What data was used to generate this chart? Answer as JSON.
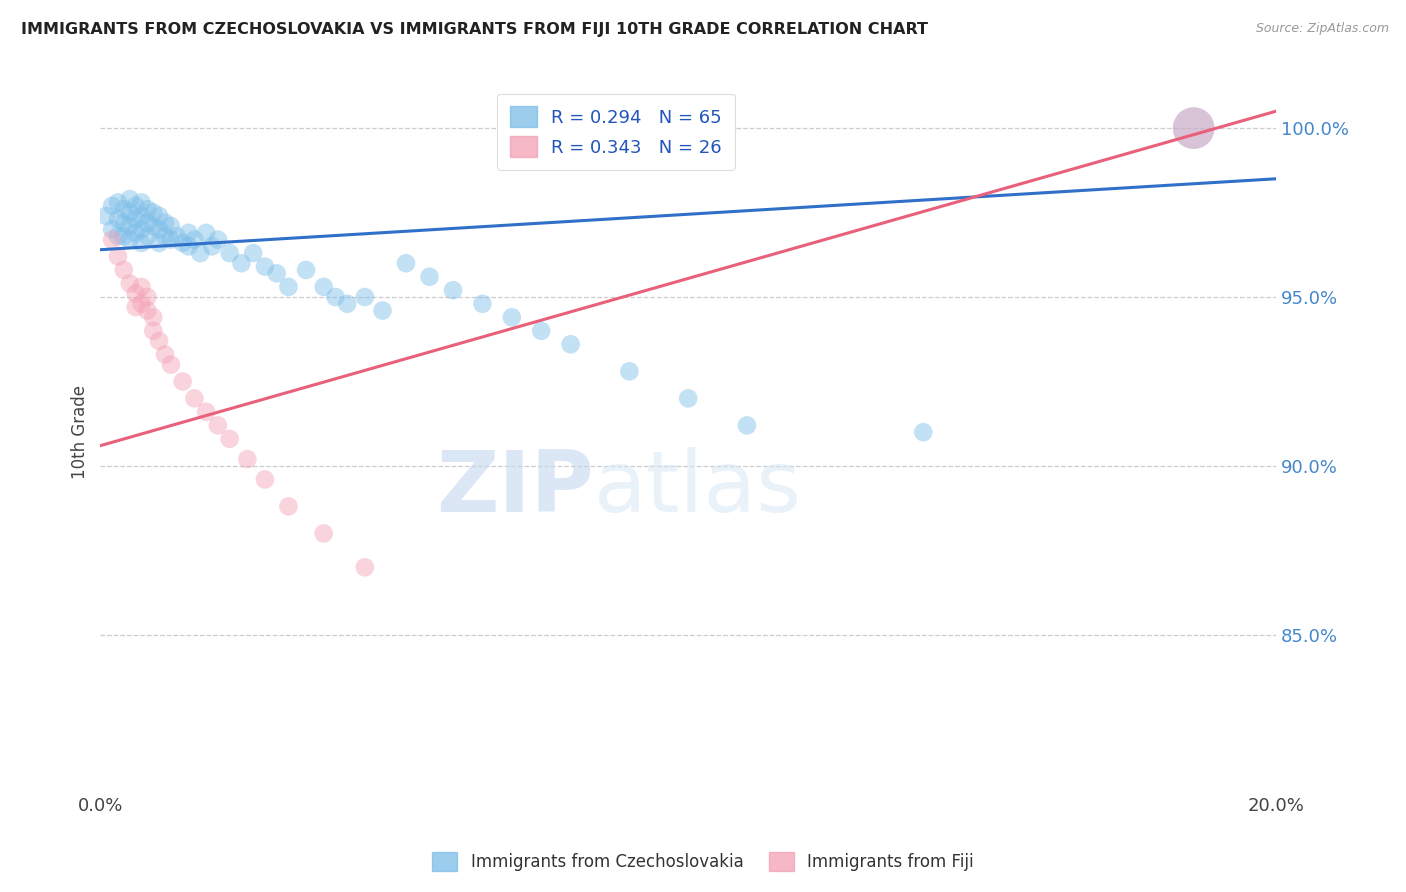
{
  "title": "IMMIGRANTS FROM CZECHOSLOVAKIA VS IMMIGRANTS FROM FIJI 10TH GRADE CORRELATION CHART",
  "source": "Source: ZipAtlas.com",
  "ylabel": "10th Grade",
  "yticks": [
    0.85,
    0.9,
    0.95,
    1.0
  ],
  "ytick_labels": [
    "85.0%",
    "90.0%",
    "95.0%",
    "100.0%"
  ],
  "xmin": 0.0,
  "xmax": 0.2,
  "ymin": 0.805,
  "ymax": 1.015,
  "legend_blue_r": "R = 0.294",
  "legend_blue_n": "N = 65",
  "legend_pink_r": "R = 0.343",
  "legend_pink_n": "N = 26",
  "blue_color": "#7bbde8",
  "pink_color": "#f4a0b5",
  "blue_line_color": "#3070c8",
  "pink_line_color": "#e8607a",
  "watermark_zip": "ZIP",
  "watermark_atlas": "atlas",
  "blue_line_x": [
    0.0,
    0.2
  ],
  "blue_line_y": [
    0.964,
    0.985
  ],
  "pink_line_x": [
    0.0,
    0.2
  ],
  "pink_line_y": [
    0.906,
    1.005
  ],
  "blue_x": [
    0.001,
    0.002,
    0.002,
    0.003,
    0.003,
    0.003,
    0.004,
    0.004,
    0.004,
    0.005,
    0.005,
    0.005,
    0.005,
    0.006,
    0.006,
    0.006,
    0.007,
    0.007,
    0.007,
    0.007,
    0.008,
    0.008,
    0.008,
    0.009,
    0.009,
    0.01,
    0.01,
    0.01,
    0.011,
    0.011,
    0.012,
    0.012,
    0.013,
    0.014,
    0.015,
    0.015,
    0.016,
    0.017,
    0.018,
    0.019,
    0.02,
    0.022,
    0.024,
    0.026,
    0.028,
    0.03,
    0.032,
    0.035,
    0.038,
    0.04,
    0.042,
    0.045,
    0.048,
    0.052,
    0.056,
    0.06,
    0.065,
    0.07,
    0.075,
    0.08,
    0.09,
    0.1,
    0.11,
    0.14,
    0.186
  ],
  "blue_y": [
    0.974,
    0.977,
    0.97,
    0.978,
    0.973,
    0.968,
    0.976,
    0.972,
    0.968,
    0.979,
    0.975,
    0.971,
    0.967,
    0.977,
    0.973,
    0.969,
    0.978,
    0.974,
    0.97,
    0.966,
    0.976,
    0.972,
    0.968,
    0.975,
    0.971,
    0.974,
    0.97,
    0.966,
    0.972,
    0.968,
    0.971,
    0.967,
    0.968,
    0.966,
    0.969,
    0.965,
    0.967,
    0.963,
    0.969,
    0.965,
    0.967,
    0.963,
    0.96,
    0.963,
    0.959,
    0.957,
    0.953,
    0.958,
    0.953,
    0.95,
    0.948,
    0.95,
    0.946,
    0.96,
    0.956,
    0.952,
    0.948,
    0.944,
    0.94,
    0.936,
    0.928,
    0.92,
    0.912,
    0.91,
    1.0
  ],
  "blue_size": [
    180,
    180,
    180,
    180,
    180,
    180,
    180,
    180,
    180,
    180,
    180,
    180,
    180,
    180,
    180,
    180,
    180,
    180,
    180,
    180,
    180,
    180,
    180,
    180,
    180,
    180,
    180,
    180,
    180,
    180,
    180,
    180,
    180,
    180,
    180,
    180,
    180,
    180,
    180,
    180,
    180,
    180,
    180,
    180,
    180,
    180,
    180,
    180,
    180,
    180,
    180,
    180,
    180,
    180,
    180,
    180,
    180,
    180,
    180,
    180,
    180,
    180,
    180,
    180,
    900
  ],
  "pink_x": [
    0.002,
    0.003,
    0.004,
    0.005,
    0.006,
    0.006,
    0.007,
    0.007,
    0.008,
    0.008,
    0.009,
    0.009,
    0.01,
    0.011,
    0.012,
    0.014,
    0.016,
    0.018,
    0.02,
    0.022,
    0.025,
    0.028,
    0.032,
    0.038,
    0.045,
    0.186
  ],
  "pink_y": [
    0.967,
    0.962,
    0.958,
    0.954,
    0.951,
    0.947,
    0.953,
    0.948,
    0.95,
    0.946,
    0.944,
    0.94,
    0.937,
    0.933,
    0.93,
    0.925,
    0.92,
    0.916,
    0.912,
    0.908,
    0.902,
    0.896,
    0.888,
    0.88,
    0.87,
    1.0
  ],
  "pink_size": [
    180,
    180,
    180,
    180,
    180,
    180,
    180,
    180,
    180,
    180,
    180,
    180,
    180,
    180,
    180,
    180,
    180,
    180,
    180,
    180,
    180,
    180,
    180,
    180,
    180,
    900
  ]
}
